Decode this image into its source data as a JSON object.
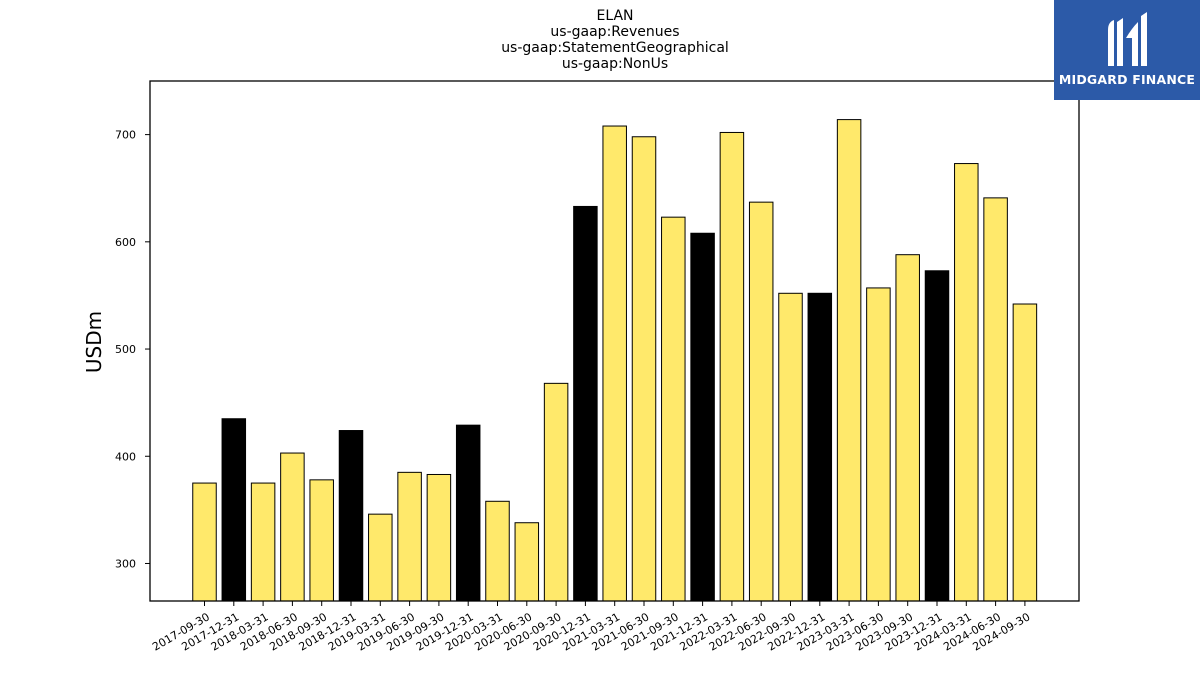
{
  "logo": {
    "text": "MIDGARD FINANCE",
    "background": "#2c5aa8"
  },
  "chart_data": {
    "type": "bar",
    "title_lines": [
      "ELAN",
      "us-gaap:Revenues",
      "us-gaap:StatementGeographical",
      "us-gaap:NonUs"
    ],
    "xlabel": "",
    "ylabel": "USDm",
    "ylim": [
      265,
      750
    ],
    "yticks": [
      300,
      400,
      500,
      600,
      700
    ],
    "grid": false,
    "colors": {
      "quarter": "#ffe96b",
      "year_end": "#000000",
      "edge": "#000000"
    },
    "categories": [
      "2017-09-30",
      "2017-12-31",
      "2018-03-31",
      "2018-06-30",
      "2018-09-30",
      "2018-12-31",
      "2019-03-31",
      "2019-06-30",
      "2019-09-30",
      "2019-12-31",
      "2020-03-31",
      "2020-06-30",
      "2020-09-30",
      "2020-12-31",
      "2021-03-31",
      "2021-06-30",
      "2021-09-30",
      "2021-12-31",
      "2022-03-31",
      "2022-06-30",
      "2022-09-30",
      "2022-12-31",
      "2023-03-31",
      "2023-06-30",
      "2023-09-30",
      "2023-12-31",
      "2024-03-31",
      "2024-06-30",
      "2024-09-30"
    ],
    "values": [
      375,
      435,
      375,
      403,
      378,
      424,
      346,
      385,
      383,
      429,
      358,
      338,
      468,
      633,
      708,
      698,
      623,
      608,
      702,
      637,
      552,
      552,
      714,
      557,
      588,
      573,
      673,
      641,
      542
    ]
  }
}
